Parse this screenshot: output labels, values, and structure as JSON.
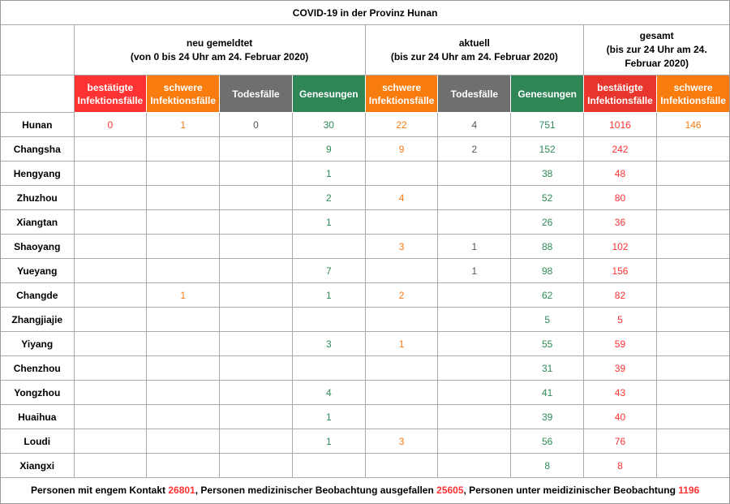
{
  "title": "COVID-19 in der Provinz Hunan",
  "groups": [
    {
      "label": "neu gemeldtet",
      "sub": "(von 0 bis 24 Uhr am 24. Februar 2020)"
    },
    {
      "label": "aktuell",
      "sub": "(bis zur 24 Uhr am 24. Februar 2020)"
    },
    {
      "label": "gesamt",
      "sub": "(bis zur 24 Uhr am 24. Februar 2020)"
    }
  ],
  "columns": [
    {
      "label": "bestätigte Infektionsfälle",
      "bg": "#ff3333",
      "fg": "#ff3333"
    },
    {
      "label": "schwere Infektionsfälle",
      "bg": "#f97c0f",
      "fg": "#f77b14"
    },
    {
      "label": "Todesfälle",
      "bg": "#6f6f6f",
      "fg": "#555555"
    },
    {
      "label": "Genesungen",
      "bg": "#2e8656",
      "fg": "#2e8b57"
    },
    {
      "label": "schwere Infektionsfälle",
      "bg": "#f97c0f",
      "fg": "#f77b14"
    },
    {
      "label": "Todesfälle",
      "bg": "#6f6f6f",
      "fg": "#555555"
    },
    {
      "label": "Genesungen",
      "bg": "#2e8656",
      "fg": "#2e8b57"
    },
    {
      "label": "bestätigte Infektionsfälle",
      "bg": "#e8352e",
      "fg": "#ff3333"
    },
    {
      "label": "schwere Infektionsfälle",
      "bg": "#f97c0f",
      "fg": "#f77b14"
    }
  ],
  "rows": [
    {
      "name": "Hunan",
      "values": [
        "0",
        "1",
        "0",
        "30",
        "22",
        "4",
        "751",
        "1016",
        "146"
      ]
    },
    {
      "name": "Changsha",
      "values": [
        "",
        "",
        "",
        "9",
        "9",
        "2",
        "152",
        "242",
        ""
      ]
    },
    {
      "name": "Hengyang",
      "values": [
        "",
        "",
        "",
        "1",
        "",
        "",
        "38",
        "48",
        ""
      ]
    },
    {
      "name": "Zhuzhou",
      "values": [
        "",
        "",
        "",
        "2",
        "4",
        "",
        "52",
        "80",
        ""
      ]
    },
    {
      "name": "Xiangtan",
      "values": [
        "",
        "",
        "",
        "1",
        "",
        "",
        "26",
        "36",
        ""
      ]
    },
    {
      "name": "Shaoyang",
      "values": [
        "",
        "",
        "",
        "",
        "3",
        "1",
        "88",
        "102",
        ""
      ]
    },
    {
      "name": "Yueyang",
      "values": [
        "",
        "",
        "",
        "7",
        "",
        "1",
        "98",
        "156",
        ""
      ]
    },
    {
      "name": "Changde",
      "values": [
        "",
        "1",
        "",
        "1",
        "2",
        "",
        "62",
        "82",
        ""
      ]
    },
    {
      "name": "Zhangjiajie",
      "values": [
        "",
        "",
        "",
        "",
        "",
        "",
        "5",
        "5",
        ""
      ]
    },
    {
      "name": "Yiyang",
      "values": [
        "",
        "",
        "",
        "3",
        "1",
        "",
        "55",
        "59",
        ""
      ]
    },
    {
      "name": "Chenzhou",
      "values": [
        "",
        "",
        "",
        "",
        "",
        "",
        "31",
        "39",
        ""
      ]
    },
    {
      "name": "Yongzhou",
      "values": [
        "",
        "",
        "",
        "4",
        "",
        "",
        "41",
        "43",
        ""
      ]
    },
    {
      "name": "Huaihua",
      "values": [
        "",
        "",
        "",
        "1",
        "",
        "",
        "39",
        "40",
        ""
      ]
    },
    {
      "name": "Loudi",
      "values": [
        "",
        "",
        "",
        "1",
        "3",
        "",
        "56",
        "76",
        ""
      ]
    },
    {
      "name": "Xiangxi",
      "values": [
        "",
        "",
        "",
        "",
        "",
        "",
        "8",
        "8",
        ""
      ]
    }
  ],
  "footer": {
    "t1": "Personen mit engem Kontakt ",
    "v1": "26801",
    "t2": ", Personen medizinischer Beobachtung ausgefallen ",
    "v2": "25605",
    "t3": ", Personen unter meidizinischer Beobachtung ",
    "v3": "1196"
  }
}
